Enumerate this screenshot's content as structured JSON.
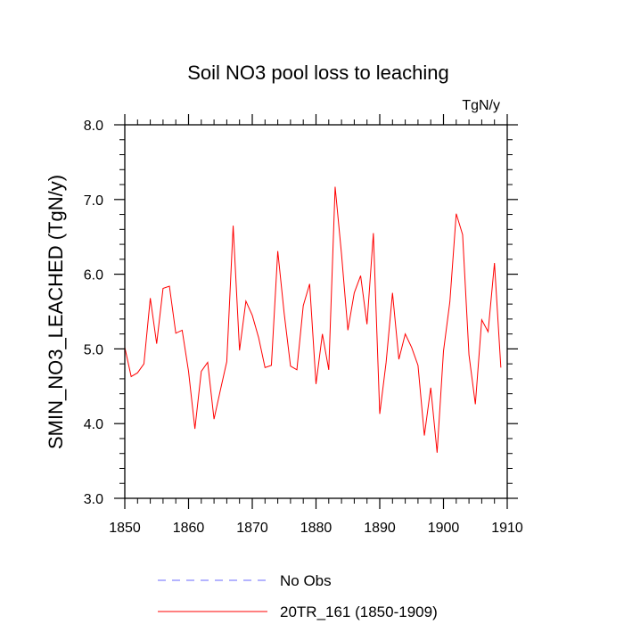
{
  "chart_data": {
    "type": "line",
    "title": "Soil NO3 pool loss to leaching",
    "units_label": "TgN/y",
    "ylabel": "SMIN_NO3_LEACHED  (TgN/y)",
    "xlabel": "",
    "xlim": [
      1850,
      1910
    ],
    "ylim": [
      3.0,
      8.0
    ],
    "x_ticks": [
      1850,
      1860,
      1870,
      1880,
      1890,
      1900,
      1910
    ],
    "y_ticks": [
      3.0,
      4.0,
      5.0,
      6.0,
      7.0,
      8.0
    ],
    "y_tick_labels": [
      "3.0",
      "4.0",
      "5.0",
      "6.0",
      "7.0",
      "8.0"
    ],
    "grid": false,
    "legend_position": "bottom",
    "series": [
      {
        "name": "No Obs",
        "color": "#6a6aff",
        "dash": "dashed",
        "x": [],
        "values": []
      },
      {
        "name": "20TR_161 (1850-1909)",
        "color": "#ff0000",
        "dash": "solid",
        "x": [
          1850,
          1851,
          1852,
          1853,
          1854,
          1855,
          1856,
          1857,
          1858,
          1859,
          1860,
          1861,
          1862,
          1863,
          1864,
          1865,
          1866,
          1867,
          1868,
          1869,
          1870,
          1871,
          1872,
          1873,
          1874,
          1875,
          1876,
          1877,
          1878,
          1879,
          1880,
          1881,
          1882,
          1883,
          1884,
          1885,
          1886,
          1887,
          1888,
          1889,
          1890,
          1891,
          1892,
          1893,
          1894,
          1895,
          1896,
          1897,
          1898,
          1899,
          1900,
          1901,
          1902,
          1903,
          1904,
          1905,
          1906,
          1907,
          1908,
          1909
        ],
        "values": [
          5.02,
          4.63,
          4.68,
          4.8,
          5.68,
          5.07,
          5.81,
          5.84,
          5.21,
          5.25,
          4.7,
          3.93,
          4.7,
          4.82,
          4.06,
          4.45,
          4.83,
          6.65,
          4.98,
          5.64,
          5.45,
          5.15,
          4.75,
          4.78,
          6.31,
          5.48,
          4.77,
          4.72,
          5.58,
          5.87,
          4.53,
          5.2,
          4.72,
          7.17,
          6.27,
          5.25,
          5.75,
          5.98,
          5.33,
          6.55,
          4.13,
          4.82,
          5.75,
          4.86,
          5.2,
          5.02,
          4.78,
          3.84,
          4.48,
          3.61,
          4.97,
          5.63,
          6.81,
          6.53,
          4.92,
          4.26,
          5.39,
          5.23,
          6.15,
          4.75
        ]
      }
    ]
  }
}
